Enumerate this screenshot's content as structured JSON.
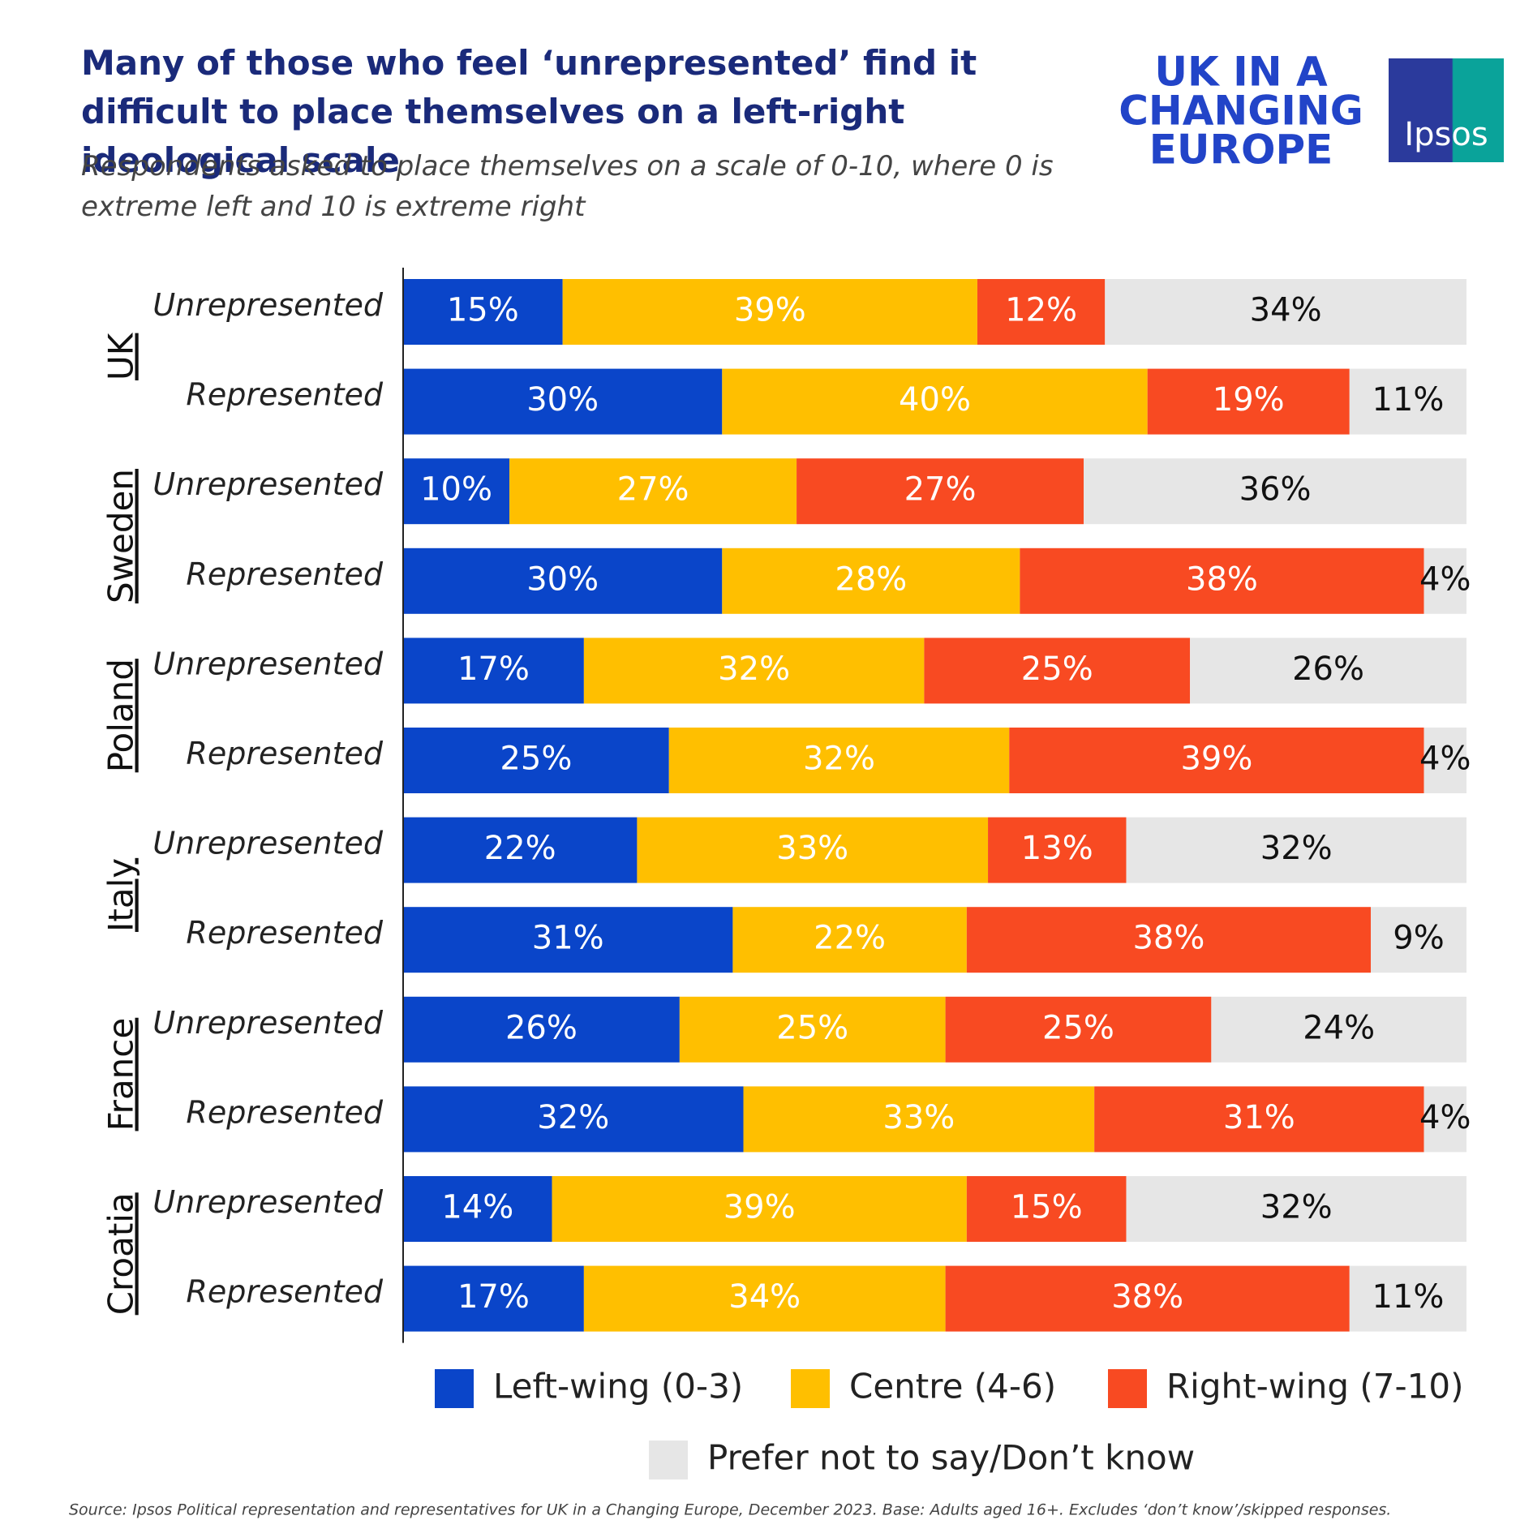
{
  "chart_data": {
    "type": "stacked_barh",
    "title": "Many of those who feel ‘unrepresented’ find it difficult to place themselves on a left-right ideological scale",
    "subtitle": "Respondents asked to place themselves on a scale of 0-10, where 0 is extreme left and 10 is extreme right",
    "logo": [
      "UK IN A",
      "CHANGING",
      "EUROPE"
    ],
    "brand": "Ipsos",
    "source": "Source: Ipsos Political representation and representatives for UK in a Changing Europe, December 2023. Base: Adults aged 16+. Excludes ‘don’t know’/skipped responses.",
    "groups": [
      "UK",
      "Sweden",
      "Poland",
      "Italy",
      "France",
      "Croatia"
    ],
    "categories": [
      "Unrepresented",
      "Represented",
      "Unrepresented",
      "Represented",
      "Unrepresented",
      "Represented",
      "Unrepresented",
      "Represented",
      "Unrepresented",
      "Represented",
      "Unrepresented",
      "Represented"
    ],
    "xlim": [
      0,
      100
    ],
    "legend": "bottom",
    "series": [
      {
        "name": "Left-wing (0-3)",
        "color": "#0a45c9",
        "label_color": "#ffffff",
        "values": [
          15,
          30,
          10,
          30,
          17,
          25,
          22,
          31,
          26,
          32,
          14,
          17
        ],
        "value_labels": [
          "15%",
          "30%",
          "10%",
          "30%",
          "17%",
          "25%",
          "22%",
          "31%",
          "26%",
          "32%",
          "14%",
          "17%"
        ]
      },
      {
        "name": "Centre (4-6)",
        "color": "#ffbf00",
        "label_color": "#ffffff",
        "values": [
          39,
          40,
          27,
          28,
          32,
          32,
          33,
          22,
          25,
          33,
          39,
          34
        ],
        "value_labels": [
          "39%",
          "40%",
          "27%",
          "28%",
          "32%",
          "32%",
          "33%",
          "22%",
          "25%",
          "33%",
          "39%",
          "34%"
        ]
      },
      {
        "name": "Right-wing (7-10)",
        "color": "#f84a22",
        "label_color": "#ffffff",
        "values": [
          12,
          19,
          27,
          38,
          25,
          39,
          13,
          38,
          25,
          31,
          15,
          38
        ],
        "value_labels": [
          "12%",
          "19%",
          "27%",
          "38%",
          "25%",
          "39%",
          "13%",
          "38%",
          "25%",
          "31%",
          "15%",
          "38%"
        ]
      },
      {
        "name": "Prefer not to say/Don’t know",
        "color": "#e6e6e6",
        "label_color": "#111111",
        "values": [
          34,
          11,
          36,
          4,
          26,
          4,
          32,
          9,
          24,
          4,
          32,
          11
        ],
        "value_labels": [
          "34%",
          "11%",
          "36%",
          "4%",
          "26%",
          "4%",
          "32%",
          "9%",
          "24%",
          "4%",
          "32%",
          "11%"
        ]
      }
    ]
  }
}
